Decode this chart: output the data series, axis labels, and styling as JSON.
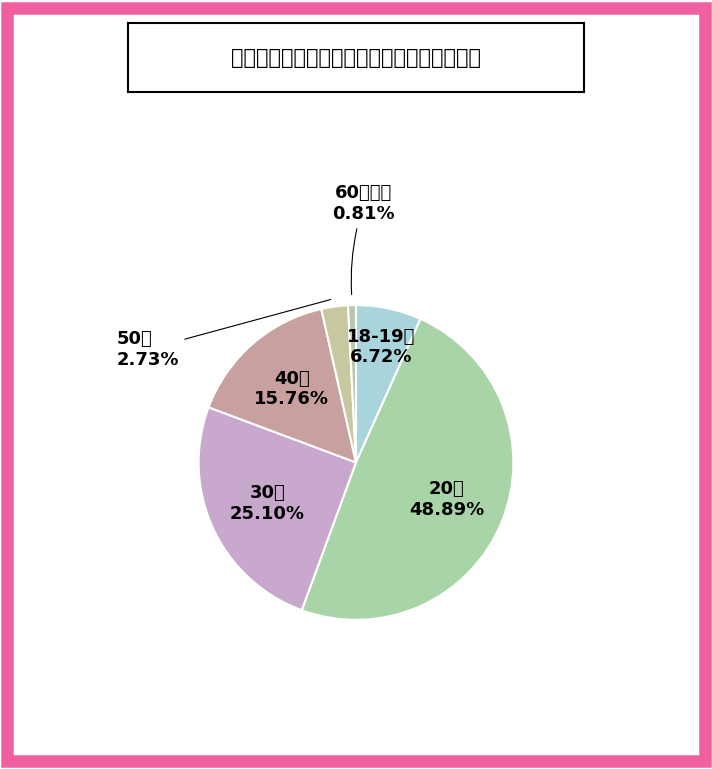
{
  "title": "千葉県のワクワクメール：女性会員の年齢層",
  "labels": [
    "18-19歳",
    "20代",
    "30代",
    "40代",
    "50代",
    "60代以上"
  ],
  "values": [
    6.72,
    48.89,
    25.1,
    15.76,
    2.73,
    0.81
  ],
  "colors": [
    "#a8d4dc",
    "#a8d4a8",
    "#c8a8cc",
    "#c8a0a0",
    "#c8c8a0",
    "#b8c8b0"
  ],
  "background_color": "#ffffff",
  "border_color": "#f060a0",
  "title_fontsize": 15,
  "label_fontsize": 13,
  "startangle": 90,
  "label_positions": {
    "18-19歳": {
      "r": 0.75,
      "inside": true
    },
    "20代": {
      "r": 0.65,
      "inside": true
    },
    "30代": {
      "r": 0.65,
      "inside": true
    },
    "40代": {
      "r": 0.65,
      "inside": true
    },
    "50代": {
      "r": 1.55,
      "inside": false,
      "ha": "right"
    },
    "60代以上": {
      "r": 1.45,
      "inside": false,
      "ha": "center"
    }
  }
}
